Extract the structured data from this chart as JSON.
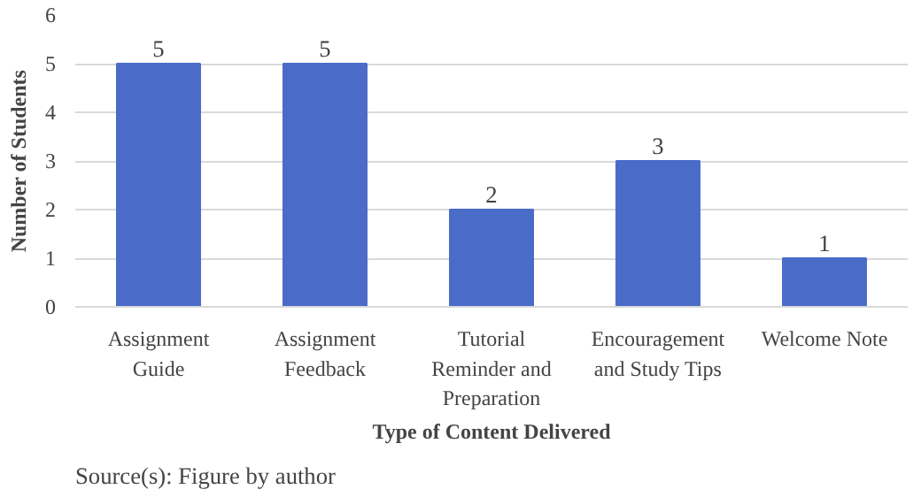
{
  "chart_data": {
    "type": "bar",
    "xlabel": "Type of Content Delivered",
    "ylabel": "Number of Students",
    "categories": [
      "Assignment Guide",
      "Assignment Feedback",
      "Tutorial Reminder and Preparation",
      "Encouragement and Study Tips",
      "Welcome Note"
    ],
    "values": [
      5,
      5,
      2,
      3,
      1
    ],
    "color": "#4a6cc8",
    "ylim": [
      0,
      6
    ],
    "yticks": [
      0,
      1,
      2,
      3,
      4,
      5,
      6
    ],
    "grid": "y",
    "data_labels": true,
    "annotations": [
      "Source(s): Figure by author"
    ]
  }
}
